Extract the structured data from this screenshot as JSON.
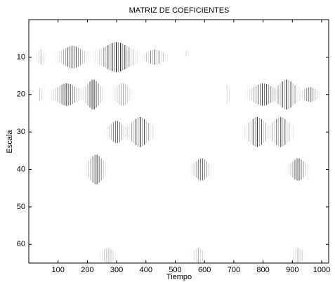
{
  "chart_data": {
    "type": "heatmap",
    "title": "MATRIZ DE COEFICIENTES",
    "x_label": "Tiempo",
    "y_label": "Escala",
    "xlim": [
      0,
      1024
    ],
    "ylim": [
      0,
      65
    ],
    "y_reversed": true,
    "xticks": [
      100,
      200,
      300,
      400,
      500,
      600,
      700,
      800,
      900,
      1000
    ],
    "yticks": [
      10,
      20,
      30,
      40,
      50,
      60
    ],
    "color": "#000000",
    "blobs": {
      "time": [
        40,
        150,
        300,
        430,
        540,
        40,
        130,
        220,
        320,
        680,
        800,
        880,
        960,
        300,
        380,
        780,
        860,
        230,
        590,
        920,
        270,
        580,
        920
      ],
      "scale": [
        10,
        10,
        10,
        10,
        9,
        20,
        20,
        20,
        20,
        20,
        20,
        20,
        20,
        30,
        30,
        30,
        30,
        40,
        40,
        40,
        63,
        63,
        63
      ],
      "time_spread": [
        20,
        60,
        80,
        50,
        10,
        10,
        60,
        40,
        40,
        10,
        60,
        50,
        40,
        40,
        50,
        50,
        50,
        40,
        40,
        40,
        40,
        30,
        30
      ],
      "scale_spread": [
        2,
        3,
        4,
        2,
        1,
        2,
        3,
        4,
        3,
        3,
        3,
        4,
        2,
        3,
        4,
        4,
        4,
        4,
        3,
        3,
        2,
        2,
        2
      ],
      "intensity": [
        0.3,
        0.8,
        1.0,
        0.6,
        0.2,
        0.3,
        0.8,
        0.9,
        0.4,
        0.2,
        0.8,
        0.9,
        0.6,
        0.7,
        0.9,
        0.8,
        0.7,
        0.8,
        0.7,
        0.8,
        0.3,
        0.3,
        0.3
      ]
    }
  }
}
